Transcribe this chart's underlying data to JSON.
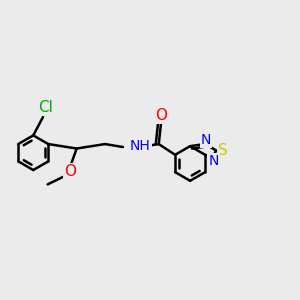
{
  "background_color": "#ebebeb",
  "bond_color": "#000000",
  "bond_width": 1.8,
  "atom_colors": {
    "N": "#0000ff",
    "O": "#ff0000",
    "S": "#cccc00",
    "Cl": "#00aa00"
  },
  "font_size": 10,
  "fig_width": 3.0,
  "fig_height": 3.0,
  "dpi": 100
}
